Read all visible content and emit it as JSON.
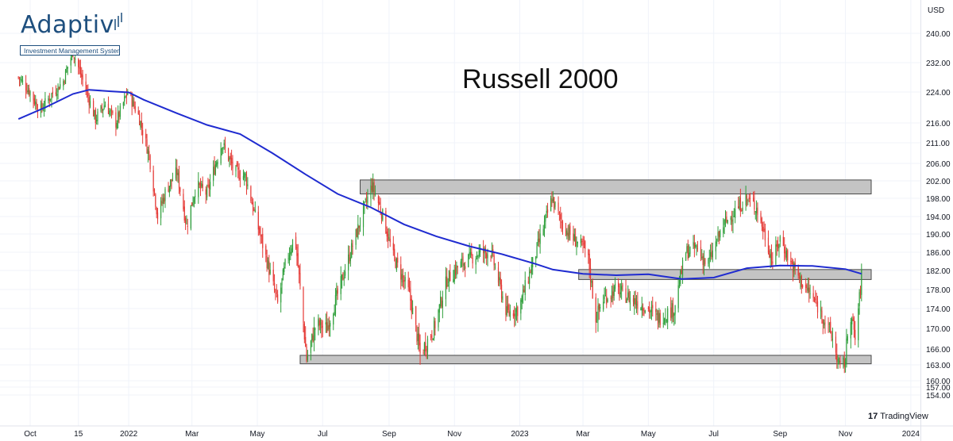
{
  "logo": {
    "name": "Adaptiv",
    "tagline": "Investment Management System"
  },
  "title": "Russell 2000",
  "currency": "USD",
  "watermark": "TradingView",
  "colors": {
    "up": "#26a69a",
    "up_bar": "#2e9f3a",
    "down": "#e53935",
    "ma": "#1f2bd0",
    "zone_fill": "#c4c4c4",
    "zone_stroke": "#4a4a4a",
    "logo": "#1e4f7e"
  },
  "chart_data": {
    "type": "line",
    "title": "Russell 2000",
    "y_axis": {
      "ticks": [
        154.0,
        157.0,
        160.0,
        163.0,
        166.0,
        170.0,
        174.0,
        178.0,
        182.0,
        186.0,
        190.0,
        194.0,
        198.0,
        202.0,
        206.0,
        211.0,
        216.0,
        224.0,
        232.0,
        240.0
      ],
      "tick_labels": [
        "154.00",
        "157.00",
        "160.00",
        "163.00",
        "166.00",
        "170.00",
        "174.00",
        "178.00",
        "182.00",
        "186.00",
        "190.00",
        "194.00",
        "198.00",
        "202.00",
        "206.00",
        "211.00",
        "216.00",
        "224.00",
        "232.00",
        "240.00"
      ]
    },
    "x_axis": {
      "tick_labels": [
        "Oct",
        "15",
        "2022",
        "Mar",
        "May",
        "Jul",
        "Sep",
        "Nov",
        "2023",
        "Mar",
        "May",
        "Jul",
        "Sep",
        "Nov",
        "2024"
      ],
      "tick_dates": [
        "2021-10-01",
        "2021-11-15",
        "2022-01-01",
        "2022-03-01",
        "2022-05-01",
        "2022-07-01",
        "2022-09-01",
        "2022-11-01",
        "2023-01-01",
        "2023-03-01",
        "2023-05-01",
        "2023-07-01",
        "2023-09-01",
        "2023-11-01",
        "2024-01-01"
      ]
    },
    "price_path": [
      [
        "2021-09-20",
        228
      ],
      [
        "2021-10-01",
        224
      ],
      [
        "2021-10-10",
        219
      ],
      [
        "2021-10-20",
        223
      ],
      [
        "2021-11-01",
        227
      ],
      [
        "2021-11-05",
        231
      ],
      [
        "2021-11-10",
        235
      ],
      [
        "2021-11-25",
        222
      ],
      [
        "2021-12-01",
        217
      ],
      [
        "2021-12-10",
        221
      ],
      [
        "2021-12-20",
        216
      ],
      [
        "2021-12-31",
        224
      ],
      [
        "2022-01-10",
        218
      ],
      [
        "2022-01-20",
        208
      ],
      [
        "2022-01-28",
        194
      ],
      [
        "2022-02-05",
        200
      ],
      [
        "2022-02-15",
        204
      ],
      [
        "2022-02-24",
        192
      ],
      [
        "2022-03-05",
        201
      ],
      [
        "2022-03-15",
        199
      ],
      [
        "2022-03-29",
        211
      ],
      [
        "2022-04-10",
        204
      ],
      [
        "2022-04-20",
        203
      ],
      [
        "2022-04-29",
        194
      ],
      [
        "2022-05-10",
        184
      ],
      [
        "2022-05-20",
        175
      ],
      [
        "2022-05-27",
        183
      ],
      [
        "2022-06-05",
        190
      ],
      [
        "2022-06-16",
        164
      ],
      [
        "2022-06-25",
        171
      ],
      [
        "2022-07-05",
        170
      ],
      [
        "2022-07-15",
        177
      ],
      [
        "2022-07-31",
        189
      ],
      [
        "2022-08-16",
        201
      ],
      [
        "2022-08-25",
        195
      ],
      [
        "2022-09-05",
        185
      ],
      [
        "2022-09-20",
        177
      ],
      [
        "2022-09-30",
        165
      ],
      [
        "2022-10-13",
        170
      ],
      [
        "2022-10-25",
        180
      ],
      [
        "2022-11-05",
        183
      ],
      [
        "2022-11-25",
        186
      ],
      [
        "2022-12-05",
        186
      ],
      [
        "2022-12-20",
        173
      ],
      [
        "2022-12-31",
        174
      ],
      [
        "2023-01-15",
        185
      ],
      [
        "2023-01-31",
        198
      ],
      [
        "2023-02-10",
        192
      ],
      [
        "2023-02-20",
        189
      ],
      [
        "2023-03-05",
        186
      ],
      [
        "2023-03-13",
        172
      ],
      [
        "2023-03-20",
        176
      ],
      [
        "2023-04-01",
        178
      ],
      [
        "2023-04-15",
        176
      ],
      [
        "2023-05-01",
        174
      ],
      [
        "2023-05-10",
        172
      ],
      [
        "2023-05-25",
        174
      ],
      [
        "2023-06-05",
        186
      ],
      [
        "2023-06-15",
        187
      ],
      [
        "2023-06-25",
        183
      ],
      [
        "2023-07-10",
        192
      ],
      [
        "2023-07-31",
        198
      ],
      [
        "2023-08-10",
        196
      ],
      [
        "2023-08-25",
        184
      ],
      [
        "2023-09-01",
        189
      ],
      [
        "2023-09-10",
        184
      ],
      [
        "2023-09-20",
        180
      ],
      [
        "2023-09-29",
        177
      ],
      [
        "2023-10-10",
        173
      ],
      [
        "2023-10-20",
        168
      ],
      [
        "2023-10-27",
        162
      ],
      [
        "2023-11-01",
        164
      ],
      [
        "2023-11-05",
        174
      ],
      [
        "2023-11-10",
        168
      ],
      [
        "2023-11-14",
        176
      ],
      [
        "2023-11-16",
        181
      ]
    ],
    "moving_average": [
      [
        "2021-09-20",
        217
      ],
      [
        "2021-10-15",
        220
      ],
      [
        "2021-11-10",
        223.5
      ],
      [
        "2021-11-25",
        224.6
      ],
      [
        "2021-12-15",
        224.2
      ],
      [
        "2022-01-01",
        223.9
      ],
      [
        "2022-01-15",
        222
      ],
      [
        "2022-02-15",
        218.5
      ],
      [
        "2022-03-15",
        215.5
      ],
      [
        "2022-04-15",
        213.2
      ],
      [
        "2022-05-15",
        208.5
      ],
      [
        "2022-06-15",
        203.5
      ],
      [
        "2022-07-15",
        199
      ],
      [
        "2022-08-15",
        196
      ],
      [
        "2022-09-15",
        192.2
      ],
      [
        "2022-10-15",
        189.5
      ],
      [
        "2022-11-15",
        187.3
      ],
      [
        "2022-12-15",
        185.6
      ],
      [
        "2023-01-15",
        183.5
      ],
      [
        "2023-02-01",
        182.2
      ],
      [
        "2023-03-01",
        181.3
      ],
      [
        "2023-04-01",
        181
      ],
      [
        "2023-05-01",
        181.2
      ],
      [
        "2023-06-01",
        180.2
      ],
      [
        "2023-07-01",
        180.5
      ],
      [
        "2023-08-01",
        182.5
      ],
      [
        "2023-09-01",
        183.1
      ],
      [
        "2023-10-01",
        183
      ],
      [
        "2023-11-01",
        182.3
      ],
      [
        "2023-11-16",
        181.3
      ]
    ],
    "zones": [
      {
        "from": "2022-08-05",
        "to": "2023-11-30",
        "low": 199.0,
        "high": 202.2
      },
      {
        "from": "2023-02-25",
        "to": "2023-11-30",
        "low": 180.1,
        "high": 182.2
      },
      {
        "from": "2022-06-10",
        "to": "2023-11-30",
        "low": 163.2,
        "high": 164.8
      }
    ]
  }
}
